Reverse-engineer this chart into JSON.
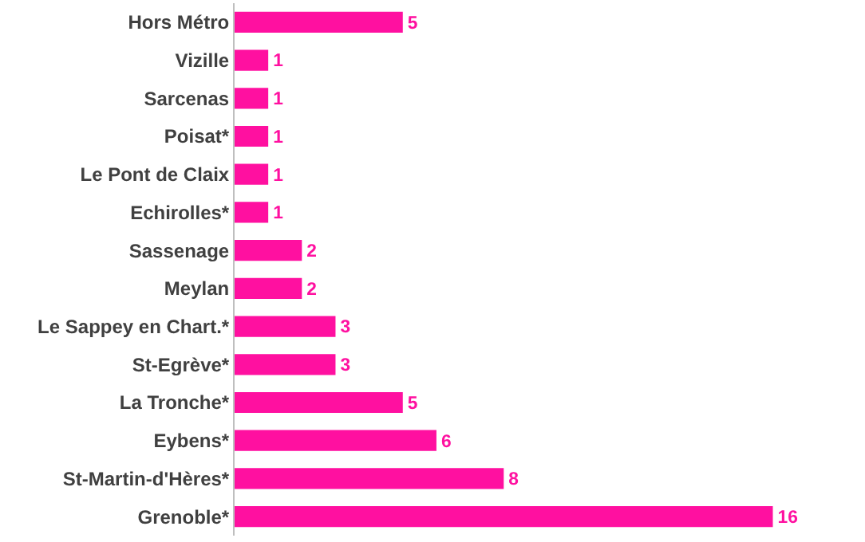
{
  "chart_data": {
    "type": "bar",
    "orientation": "horizontal",
    "data_labels": true,
    "color": "#ff10a0",
    "categories": [
      "Hors Métro",
      "Vizille",
      "Sarcenas",
      "Poisat*",
      "Le Pont de Claix",
      "Echirolles*",
      "Sassenage",
      "Meylan",
      "Le Sappey en Chart.*",
      "St-Egrève*",
      "La Tronche*",
      "Eybens*",
      "St-Martin-d'Hères*",
      "Grenoble*"
    ],
    "values": [
      5,
      1,
      1,
      1,
      1,
      1,
      2,
      2,
      3,
      3,
      5,
      6,
      8,
      16
    ]
  }
}
